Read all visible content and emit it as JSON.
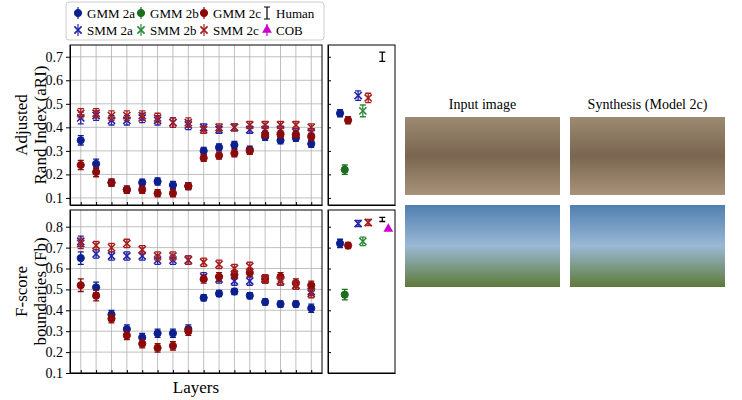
{
  "chart_data": [
    {
      "type": "scatter",
      "ylabel": [
        "Adjusted",
        "Rand Index (aRI)"
      ],
      "x": [
        1,
        2,
        3,
        4,
        5,
        6,
        7,
        8,
        9,
        10,
        11,
        12,
        13,
        14,
        15,
        16
      ],
      "xlim": [
        0.3,
        16.7
      ],
      "xticks": [
        1,
        2,
        3,
        4,
        5,
        6,
        7,
        8,
        9,
        10,
        11,
        12,
        13,
        14,
        15,
        16
      ],
      "ylim": [
        0.07,
        0.75
      ],
      "yticks": [
        0.1,
        0.2,
        0.3,
        0.4,
        0.5,
        0.6,
        0.7
      ],
      "grid": true,
      "tick_labels": "y",
      "series": [
        {
          "name": "GMM 2a",
          "color": "#0b1f8f",
          "marker": "circle",
          "values": [
            0.345,
            0.245,
            0.165,
            0.135,
            0.165,
            0.17,
            0.155,
            0.15,
            0.3,
            0.315,
            0.325,
            0.305,
            0.36,
            0.345,
            0.355,
            0.33
          ],
          "errors": [
            0.02,
            0.02,
            0.015,
            0.015,
            0.015,
            0.015,
            0.015,
            0.015,
            0.015,
            0.015,
            0.015,
            0.015,
            0.015,
            0.015,
            0.015,
            0.015
          ]
        },
        {
          "name": "SMM 2a",
          "color": "#2323a8",
          "marker": "x",
          "values": [
            0.44,
            0.45,
            0.43,
            0.43,
            0.44,
            0.43,
            0.42,
            0.41,
            0.4,
            0.39,
            0.4,
            0.39,
            0.39,
            0.39,
            0.38,
            0.38
          ],
          "errors": [
            0.025,
            0.02,
            0.02,
            0.02,
            0.02,
            0.02,
            0.02,
            0.02,
            0.015,
            0.015,
            0.015,
            0.015,
            0.015,
            0.015,
            0.015,
            0.015
          ]
        },
        {
          "name": "GMM 2c",
          "color": "#8b0a0a",
          "marker": "circle",
          "values": [
            0.24,
            0.21,
            0.165,
            0.135,
            0.135,
            0.12,
            0.12,
            0.15,
            0.27,
            0.28,
            0.29,
            0.3,
            0.37,
            0.37,
            0.37,
            0.36
          ],
          "errors": [
            0.02,
            0.02,
            0.015,
            0.015,
            0.015,
            0.015,
            0.015,
            0.015,
            0.015,
            0.015,
            0.015,
            0.015,
            0.015,
            0.015,
            0.015,
            0.015
          ]
        },
        {
          "name": "SMM 2c",
          "color": "#a51c1c",
          "marker": "x",
          "values": [
            0.46,
            0.46,
            0.45,
            0.45,
            0.45,
            0.44,
            0.42,
            0.42,
            0.39,
            0.4,
            0.4,
            0.41,
            0.41,
            0.41,
            0.41,
            0.4
          ],
          "errors": [
            0.02,
            0.02,
            0.02,
            0.02,
            0.02,
            0.02,
            0.02,
            0.02,
            0.015,
            0.015,
            0.015,
            0.015,
            0.015,
            0.015,
            0.015,
            0.015
          ]
        }
      ]
    },
    {
      "type": "scatter",
      "xlim": [
        0,
        10
      ],
      "ylim": [
        0.07,
        0.75
      ],
      "yticks": [
        0.1,
        0.2,
        0.3,
        0.4,
        0.5,
        0.6,
        0.7
      ],
      "grid": false,
      "tick_labels": false,
      "series": [
        {
          "name": "GMM 2a",
          "color": "#0b1f8f",
          "marker": "circle",
          "x": [
            1.8
          ],
          "values": [
            0.46
          ],
          "errors": [
            0.015
          ]
        },
        {
          "name": "SMM 2a",
          "color": "#2323a8",
          "marker": "x",
          "x": [
            4.5
          ],
          "values": [
            0.535
          ],
          "errors": [
            0.02
          ]
        },
        {
          "name": "GMM 2b",
          "color": "#1b6e1b",
          "marker": "circle",
          "x": [
            2.5
          ],
          "values": [
            0.22
          ],
          "errors": [
            0.02
          ]
        },
        {
          "name": "SMM 2b",
          "color": "#2a8a3a",
          "marker": "x",
          "x": [
            5.2
          ],
          "values": [
            0.47
          ],
          "errors": [
            0.025
          ]
        },
        {
          "name": "GMM 2c",
          "color": "#8b0a0a",
          "marker": "circle",
          "x": [
            3.0
          ],
          "values": [
            0.43
          ],
          "errors": [
            0.015
          ]
        },
        {
          "name": "SMM 2c",
          "color": "#a51c1c",
          "marker": "x",
          "x": [
            6.0
          ],
          "values": [
            0.525
          ],
          "errors": [
            0.02
          ]
        },
        {
          "name": "Human",
          "color": "#000000",
          "marker": "none",
          "x": [
            8.1
          ],
          "values": [
            0.7
          ],
          "errors": [
            0.02
          ]
        }
      ]
    },
    {
      "type": "scatter",
      "ylabel": [
        "F-score",
        "boundaries (Fb)"
      ],
      "xlabel": "Layers",
      "x": [
        1,
        2,
        3,
        4,
        5,
        6,
        7,
        8,
        9,
        10,
        11,
        12,
        13,
        14,
        15,
        16
      ],
      "xlim": [
        0.3,
        16.7
      ],
      "xticks": [
        1,
        2,
        3,
        4,
        5,
        6,
        7,
        8,
        9,
        10,
        11,
        12,
        13,
        14,
        15,
        16
      ],
      "ylim": [
        0.1,
        0.88
      ],
      "yticks": [
        0.1,
        0.2,
        0.3,
        0.4,
        0.5,
        0.6,
        0.7,
        0.8
      ],
      "grid": true,
      "tick_labels": "y",
      "series": [
        {
          "name": "GMM 2a",
          "color": "#0b1f8f",
          "marker": "circle",
          "values": [
            0.65,
            0.51,
            0.38,
            0.31,
            0.27,
            0.29,
            0.29,
            0.31,
            0.46,
            0.48,
            0.49,
            0.47,
            0.44,
            0.43,
            0.43,
            0.41
          ],
          "errors": [
            0.03,
            0.025,
            0.02,
            0.02,
            0.02,
            0.02,
            0.02,
            0.02,
            0.015,
            0.015,
            0.015,
            0.015,
            0.015,
            0.015,
            0.015,
            0.02
          ]
        },
        {
          "name": "SMM 2a",
          "color": "#2323a8",
          "marker": "x",
          "values": [
            0.73,
            0.67,
            0.66,
            0.66,
            0.66,
            0.64,
            0.64,
            0.64,
            0.56,
            0.55,
            0.54,
            0.54,
            0.55,
            0.54,
            0.52,
            0.49
          ],
          "errors": [
            0.025,
            0.02,
            0.02,
            0.02,
            0.02,
            0.02,
            0.02,
            0.02,
            0.02,
            0.02,
            0.02,
            0.02,
            0.02,
            0.02,
            0.02,
            0.02
          ]
        },
        {
          "name": "GMM 2c",
          "color": "#8b0a0a",
          "marker": "circle",
          "values": [
            0.52,
            0.47,
            0.36,
            0.28,
            0.24,
            0.22,
            0.23,
            0.3,
            0.55,
            0.56,
            0.57,
            0.58,
            0.55,
            0.56,
            0.53,
            0.52
          ],
          "errors": [
            0.03,
            0.025,
            0.02,
            0.02,
            0.02,
            0.02,
            0.02,
            0.02,
            0.02,
            0.02,
            0.02,
            0.02,
            0.02,
            0.02,
            0.02,
            0.02
          ]
        },
        {
          "name": "SMM 2c",
          "color": "#a51c1c",
          "marker": "x",
          "values": [
            0.72,
            0.71,
            0.7,
            0.72,
            0.69,
            0.66,
            0.66,
            0.64,
            0.63,
            0.62,
            0.6,
            0.61,
            0.55,
            0.54,
            0.52,
            0.48
          ],
          "errors": [
            0.025,
            0.02,
            0.02,
            0.02,
            0.02,
            0.02,
            0.02,
            0.02,
            0.02,
            0.02,
            0.02,
            0.02,
            0.02,
            0.02,
            0.02,
            0.02
          ]
        }
      ]
    },
    {
      "type": "scatter",
      "xlim": [
        0,
        10
      ],
      "ylim": [
        0.1,
        0.88
      ],
      "yticks": [
        0.1,
        0.2,
        0.3,
        0.4,
        0.5,
        0.6,
        0.7,
        0.8
      ],
      "grid": false,
      "tick_labels": false,
      "legend": "top",
      "series": [
        {
          "name": "GMM 2a",
          "color": "#0b1f8f",
          "marker": "circle",
          "x": [
            1.8
          ],
          "values": [
            0.72
          ],
          "errors": [
            0.02
          ]
        },
        {
          "name": "SMM 2a",
          "color": "#2323a8",
          "marker": "x",
          "x": [
            4.5
          ],
          "values": [
            0.815
          ],
          "errors": [
            0.015
          ]
        },
        {
          "name": "GMM 2b",
          "color": "#1b6e1b",
          "marker": "circle",
          "x": [
            2.5
          ],
          "values": [
            0.475
          ],
          "errors": [
            0.025
          ]
        },
        {
          "name": "SMM 2b",
          "color": "#2a8a3a",
          "marker": "x",
          "x": [
            5.2
          ],
          "values": [
            0.73
          ],
          "errors": [
            0.02
          ]
        },
        {
          "name": "GMM 2c",
          "color": "#8b0a0a",
          "marker": "circle",
          "x": [
            3.0
          ],
          "values": [
            0.71
          ],
          "errors": [
            0.015
          ]
        },
        {
          "name": "SMM 2c",
          "color": "#a51c1c",
          "marker": "x",
          "x": [
            6.0
          ],
          "values": [
            0.82
          ],
          "errors": [
            0.015
          ]
        },
        {
          "name": "Human",
          "color": "#000000",
          "marker": "none",
          "x": [
            8.1
          ],
          "values": [
            0.835
          ],
          "errors": [
            0.01
          ]
        },
        {
          "name": "COB",
          "color": "#cc00cc",
          "marker": "triangle",
          "x": [
            9.0
          ],
          "values": [
            0.79
          ]
        }
      ]
    }
  ],
  "image_titles": [
    "Input image",
    "Synthesis (Model 2c)"
  ]
}
